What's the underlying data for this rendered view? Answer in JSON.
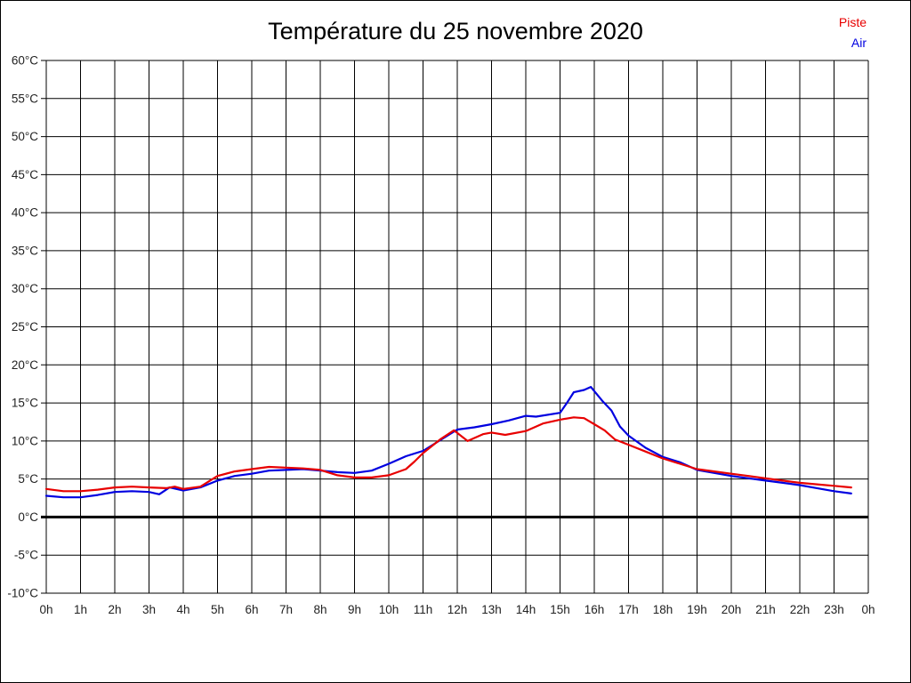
{
  "title": "Température du 25 novembre 2020",
  "legend": [
    {
      "label": "Piste",
      "color": "#e80000"
    },
    {
      "label": "Air",
      "color": "#0000e0"
    }
  ],
  "chart_data": {
    "type": "line",
    "title": "Température du 25 novembre 2020",
    "xlabel": "",
    "ylabel": "",
    "xlim": [
      0,
      24
    ],
    "ylim": [
      -10,
      60
    ],
    "grid": true,
    "zero_line_bold": true,
    "legend_position": "top-right",
    "x_tick_labels": [
      "0h",
      "1h",
      "2h",
      "3h",
      "4h",
      "5h",
      "6h",
      "7h",
      "8h",
      "9h",
      "10h",
      "11h",
      "12h",
      "13h",
      "14h",
      "15h",
      "16h",
      "17h",
      "18h",
      "19h",
      "20h",
      "21h",
      "22h",
      "23h",
      "0h"
    ],
    "y_tick_values": [
      -10,
      -5,
      0,
      5,
      10,
      15,
      20,
      25,
      30,
      35,
      40,
      45,
      50,
      55,
      60
    ],
    "y_tick_labels": [
      "-10°C",
      "-5°C",
      "0°C",
      "5°C",
      "10°C",
      "15°C",
      "20°C",
      "25°C",
      "30°C",
      "35°C",
      "40°C",
      "45°C",
      "50°C",
      "55°C",
      "60°C"
    ],
    "axis_color": "#000000",
    "tick_label_color": "#222222",
    "series": [
      {
        "name": "Piste",
        "color": "#e80000",
        "points": [
          [
            0,
            3.7
          ],
          [
            0.5,
            3.4
          ],
          [
            1,
            3.4
          ],
          [
            1.5,
            3.6
          ],
          [
            2,
            3.9
          ],
          [
            2.5,
            4.0
          ],
          [
            3,
            3.9
          ],
          [
            3.5,
            3.8
          ],
          [
            3.75,
            4.0
          ],
          [
            4,
            3.7
          ],
          [
            4.5,
            4.0
          ],
          [
            5,
            5.4
          ],
          [
            5.5,
            6.0
          ],
          [
            6,
            6.3
          ],
          [
            6.5,
            6.6
          ],
          [
            7,
            6.5
          ],
          [
            7.5,
            6.4
          ],
          [
            8,
            6.2
          ],
          [
            8.5,
            5.5
          ],
          [
            9,
            5.2
          ],
          [
            9.5,
            5.2
          ],
          [
            10,
            5.5
          ],
          [
            10.5,
            6.3
          ],
          [
            10.75,
            7.3
          ],
          [
            11,
            8.4
          ],
          [
            11.5,
            10.2
          ],
          [
            11.9,
            11.4
          ],
          [
            12.3,
            10.0
          ],
          [
            12.75,
            10.9
          ],
          [
            13,
            11.1
          ],
          [
            13.4,
            10.8
          ],
          [
            14,
            11.3
          ],
          [
            14.5,
            12.3
          ],
          [
            15,
            12.8
          ],
          [
            15.4,
            13.1
          ],
          [
            15.7,
            13.0
          ],
          [
            16,
            12.2
          ],
          [
            16.3,
            11.4
          ],
          [
            16.6,
            10.2
          ],
          [
            17,
            9.5
          ],
          [
            17.5,
            8.6
          ],
          [
            18,
            7.7
          ],
          [
            18.5,
            7.0
          ],
          [
            19,
            6.3
          ],
          [
            19.5,
            6.0
          ],
          [
            20,
            5.7
          ],
          [
            20.5,
            5.4
          ],
          [
            21,
            5.1
          ],
          [
            21.5,
            4.8
          ],
          [
            22,
            4.5
          ],
          [
            22.5,
            4.3
          ],
          [
            23,
            4.1
          ],
          [
            23.5,
            3.9
          ]
        ]
      },
      {
        "name": "Air",
        "color": "#0000e0",
        "points": [
          [
            0,
            2.8
          ],
          [
            0.5,
            2.6
          ],
          [
            1,
            2.6
          ],
          [
            1.5,
            2.9
          ],
          [
            2,
            3.3
          ],
          [
            2.5,
            3.4
          ],
          [
            3,
            3.3
          ],
          [
            3.3,
            3.0
          ],
          [
            3.6,
            3.9
          ],
          [
            4,
            3.5
          ],
          [
            4.5,
            3.9
          ],
          [
            5,
            4.8
          ],
          [
            5.5,
            5.4
          ],
          [
            6,
            5.7
          ],
          [
            6.5,
            6.1
          ],
          [
            7,
            6.2
          ],
          [
            7.5,
            6.3
          ],
          [
            8,
            6.1
          ],
          [
            8.5,
            5.9
          ],
          [
            9,
            5.8
          ],
          [
            9.5,
            6.1
          ],
          [
            10,
            7.0
          ],
          [
            10.5,
            8.0
          ],
          [
            11,
            8.7
          ],
          [
            11.5,
            10.1
          ],
          [
            12,
            11.5
          ],
          [
            12.5,
            11.8
          ],
          [
            13,
            12.2
          ],
          [
            13.5,
            12.7
          ],
          [
            14,
            13.3
          ],
          [
            14.3,
            13.2
          ],
          [
            15,
            13.7
          ],
          [
            15.2,
            15.0
          ],
          [
            15.4,
            16.4
          ],
          [
            15.7,
            16.7
          ],
          [
            15.9,
            17.1
          ],
          [
            16.25,
            15.2
          ],
          [
            16.5,
            14.0
          ],
          [
            16.75,
            11.9
          ],
          [
            17,
            10.7
          ],
          [
            17.5,
            9.1
          ],
          [
            18,
            7.9
          ],
          [
            18.5,
            7.2
          ],
          [
            19,
            6.2
          ],
          [
            19.5,
            5.8
          ],
          [
            20,
            5.4
          ],
          [
            20.5,
            5.1
          ],
          [
            21,
            4.8
          ],
          [
            21.5,
            4.5
          ],
          [
            22,
            4.2
          ],
          [
            22.5,
            3.8
          ],
          [
            23,
            3.4
          ],
          [
            23.5,
            3.1
          ]
        ]
      }
    ]
  }
}
